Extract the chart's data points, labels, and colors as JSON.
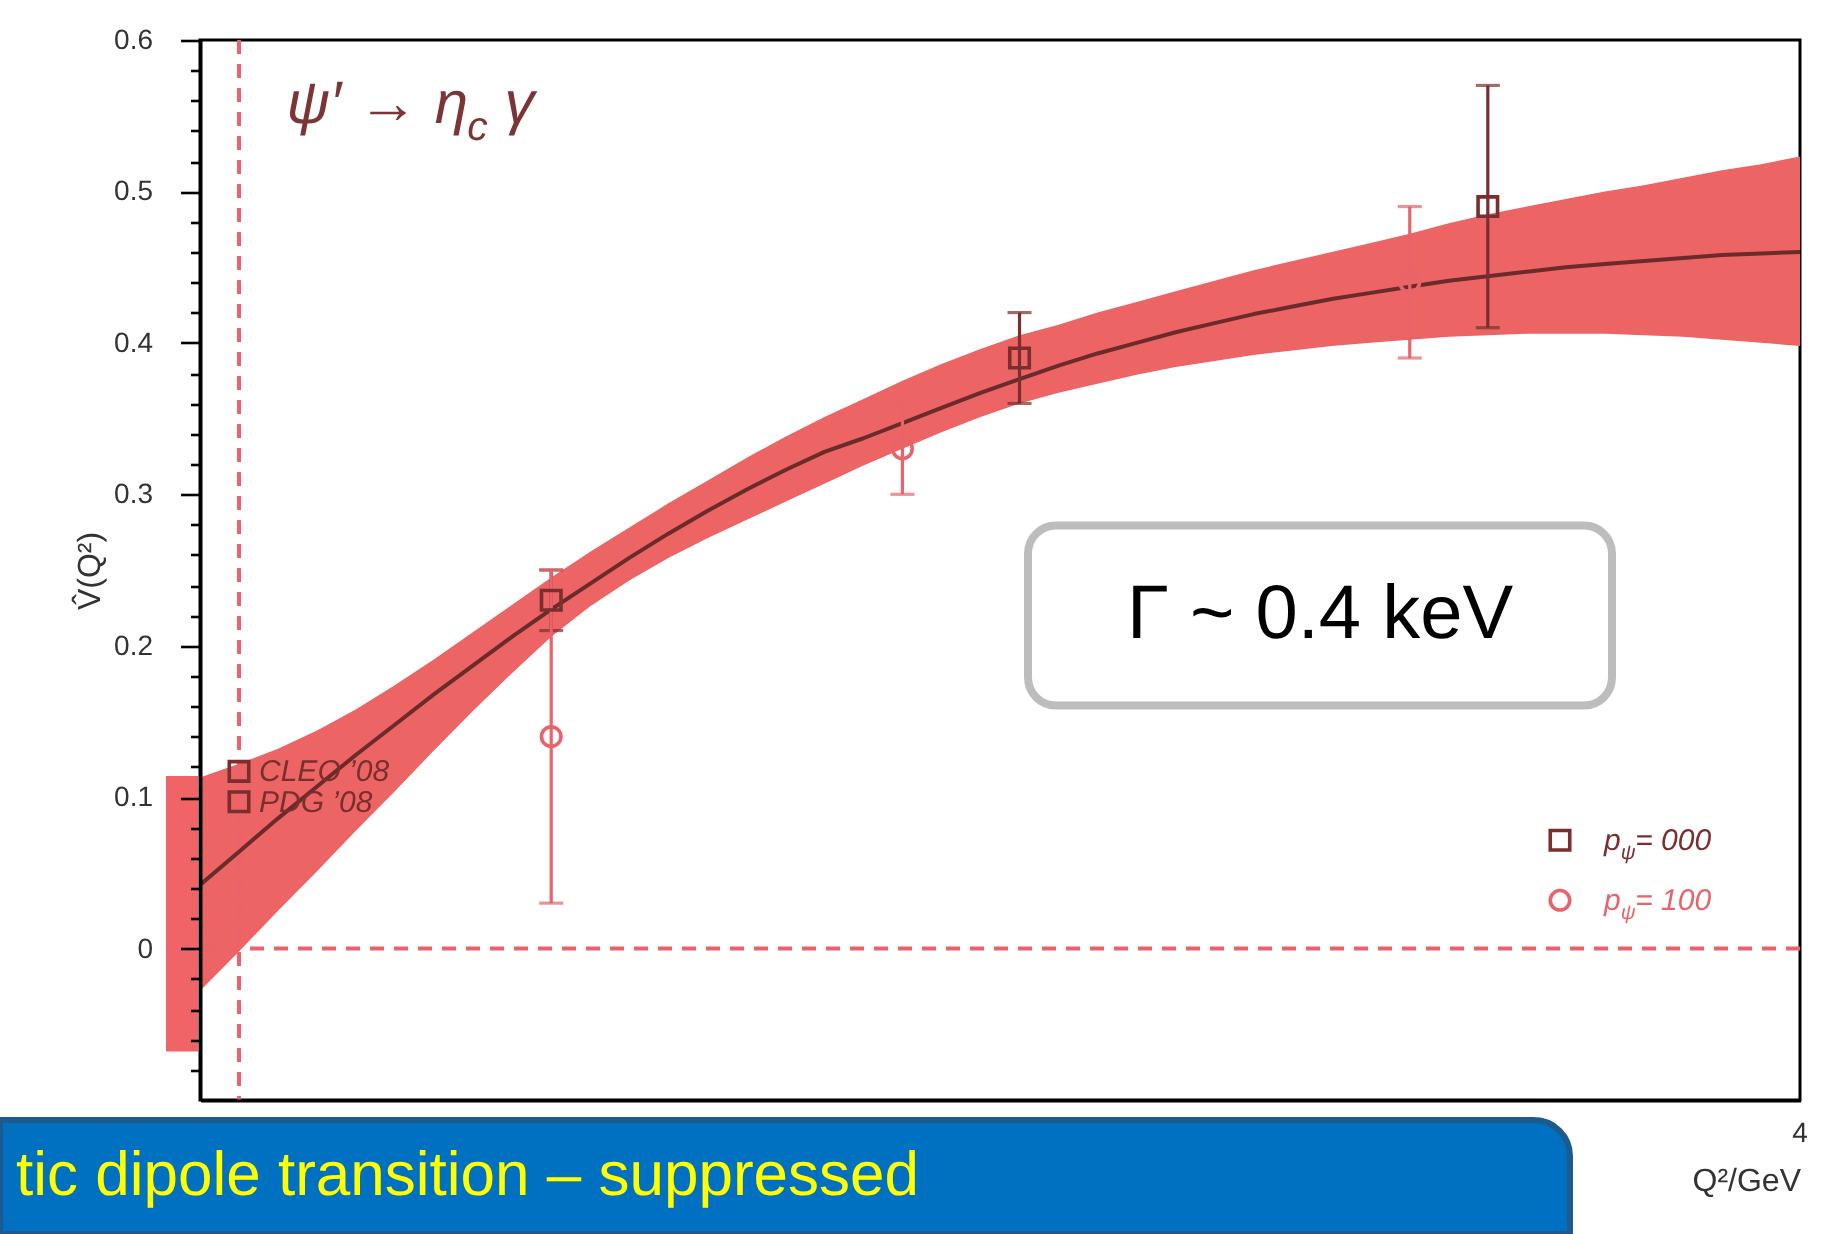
{
  "chart_data": {
    "type": "scatter",
    "title": "ψ′ → η$_{c}$ γ",
    "xlabel": "Q²/GeV",
    "ylabel": "V̂(Q²)",
    "categories": [
      null,
      null,
      null,
      null,
      null,
      null,
      null,
      null,
      null,
      null,
      null,
      null,
      null,
      null,
      null,
      null,
      null,
      null,
      null,
      null,
      null,
      null,
      null,
      null,
      null,
      null,
      null,
      null,
      null,
      null,
      null,
      null,
      null,
      null,
      null,
      null,
      null,
      null,
      null,
      null,
      null,
      null
    ],
    "ylim": [
      -0.1,
      0.6
    ],
    "yticks": [
      {
        "value": -0.08,
        "label": null
      },
      {
        "value": -0.06,
        "label": null
      },
      {
        "value": -0.04,
        "label": null
      },
      {
        "value": -0.02,
        "label": null
      },
      0,
      {
        "value": 0.02,
        "label": null
      },
      {
        "value": 0.04,
        "label": null
      },
      {
        "value": 0.06,
        "label": null
      },
      {
        "value": 0.08,
        "label": null
      },
      0.1,
      {
        "value": 0.12,
        "label": null
      },
      {
        "value": 0.14,
        "label": null
      },
      {
        "value": 0.16,
        "label": null
      },
      {
        "value": 0.18,
        "label": null
      },
      0.2,
      {
        "value": 0.22,
        "label": null
      },
      {
        "value": 0.24,
        "label": null
      },
      {
        "value": 0.26,
        "label": null
      },
      {
        "value": 0.28,
        "label": null
      },
      0.3,
      {
        "value": 0.32,
        "label": null
      },
      {
        "value": 0.34,
        "label": null
      },
      {
        "value": 0.36,
        "label": null
      },
      {
        "value": 0.38,
        "label": null
      },
      0.4,
      {
        "value": 0.42,
        "label": null
      },
      {
        "value": 0.44,
        "label": null
      },
      {
        "value": 0.46,
        "label": null
      },
      {
        "value": 0.48,
        "label": null
      },
      0.5,
      {
        "value": 0.52,
        "label": null
      },
      {
        "value": 0.54,
        "label": null
      },
      {
        "value": 0.56,
        "label": null
      },
      {
        "value": 0.58,
        "label": null
      },
      0.6
    ],
    "grid": false,
    "legend": "bottom right",
    "series": [
      {
        "type": "bar",
        "color": "#f06468",
        "values": [
          0.182,
          null,
          null,
          null,
          null,
          null,
          null,
          null,
          null,
          null,
          null,
          null,
          null,
          null,
          null,
          null,
          null,
          null,
          null,
          null,
          null,
          null,
          null,
          null,
          null,
          null,
          null,
          null,
          null,
          null,
          null,
          null,
          null,
          null,
          null,
          null,
          null,
          null,
          null,
          null,
          null,
          null
        ],
        "base": [
          -0.068,
          null,
          null,
          null,
          null,
          null,
          null,
          null,
          null,
          null,
          null,
          null,
          null,
          null,
          null,
          null,
          null,
          null,
          null,
          null,
          null,
          null,
          null,
          null,
          null,
          null,
          null,
          null,
          null,
          null,
          null,
          null,
          null,
          null,
          null,
          null,
          null,
          null,
          null,
          null,
          null,
          null
        ]
      },
      {
        "type": "line",
        "color": "#6b2b2b",
        "line_style": "solid",
        "values": [
          0.042,
          0.064,
          0.086,
          0.107,
          0.128,
          0.148,
          0.168,
          0.187,
          0.206,
          0.224,
          0.241,
          0.258,
          0.274,
          0.289,
          0.303,
          0.316,
          0.328,
          0.337,
          0.347,
          0.357,
          0.367,
          0.376,
          0.385,
          0.393,
          0.4,
          0.407,
          0.413,
          0.419,
          0.424,
          0.429,
          0.433,
          0.437,
          0.441,
          0.444,
          0.447,
          0.45,
          0.452,
          0.454,
          0.456,
          0.458,
          0.459,
          0.46
        ],
        "lower": [
          -0.028,
          -0.002,
          0.025,
          0.051,
          0.078,
          0.104,
          0.131,
          0.157,
          0.182,
          0.206,
          0.226,
          0.243,
          0.258,
          0.271,
          0.283,
          0.295,
          0.307,
          0.319,
          0.33,
          0.341,
          0.351,
          0.36,
          0.367,
          0.373,
          0.379,
          0.384,
          0.388,
          0.392,
          0.395,
          0.398,
          0.4,
          0.402,
          0.404,
          0.405,
          0.406,
          0.406,
          0.406,
          0.405,
          0.404,
          0.402,
          0.4,
          0.398
        ],
        "upper": [
          0.113,
          0.122,
          0.132,
          0.144,
          0.158,
          0.174,
          0.191,
          0.209,
          0.227,
          0.245,
          0.262,
          0.278,
          0.294,
          0.309,
          0.324,
          0.338,
          0.351,
          0.363,
          0.375,
          0.386,
          0.396,
          0.405,
          0.412,
          0.42,
          0.427,
          0.434,
          0.441,
          0.448,
          0.454,
          0.46,
          0.466,
          0.472,
          0.479,
          0.485,
          0.49,
          0.495,
          0.5,
          0.504,
          0.509,
          0.514,
          0.518,
          0.523
        ]
      },
      {
        "name": "p$_{ψ}$= 000",
        "marker": "square",
        "color": "#7a2e2e",
        "values": [
          null,
          null,
          null,
          null,
          null,
          null,
          null,
          null,
          null,
          0.23,
          null,
          null,
          null,
          null,
          null,
          null,
          null,
          null,
          null,
          null,
          null,
          0.39,
          null,
          null,
          null,
          null,
          null,
          null,
          null,
          null,
          null,
          null,
          null,
          0.49,
          null,
          null,
          null,
          null,
          null,
          null,
          null,
          null
        ],
        "errors": [
          null,
          null,
          null,
          null,
          null,
          null,
          null,
          null,
          null,
          0.02,
          null,
          null,
          null,
          null,
          null,
          null,
          null,
          null,
          null,
          null,
          null,
          0.03,
          null,
          null,
          null,
          null,
          null,
          null,
          null,
          null,
          null,
          null,
          null,
          0.08,
          null,
          null,
          null,
          null,
          null,
          null,
          null,
          null
        ]
      },
      {
        "name": "p$_{ψ}$= 100",
        "marker": "circle",
        "color": "#e8646a",
        "values": [
          null,
          null,
          null,
          null,
          null,
          null,
          null,
          null,
          null,
          0.14,
          null,
          null,
          null,
          null,
          null,
          null,
          null,
          null,
          0.33,
          null,
          null,
          null,
          null,
          null,
          null,
          null,
          null,
          null,
          null,
          null,
          null,
          0.44,
          null,
          null,
          null,
          null,
          null,
          null,
          null,
          null,
          null,
          null
        ],
        "errors": [
          null,
          null,
          null,
          null,
          null,
          null,
          null,
          null,
          null,
          0.11,
          null,
          null,
          null,
          null,
          null,
          null,
          null,
          null,
          0.03,
          null,
          null,
          null,
          null,
          null,
          null,
          null,
          null,
          null,
          null,
          null,
          null,
          0.05,
          null,
          null,
          null,
          null,
          null,
          null,
          null,
          null,
          null,
          null
        ]
      },
      {
        "name": "CLEO ’08",
        "marker": "square",
        "color": "#7a2e2e",
        "values": [
          null,
          0.117,
          null,
          null,
          null,
          null,
          null,
          null,
          null,
          null,
          null,
          null,
          null,
          null,
          null,
          null,
          null,
          null,
          null,
          null,
          null,
          null,
          null,
          null,
          null,
          null,
          null,
          null,
          null,
          null,
          null,
          null,
          null,
          null,
          null,
          null,
          null,
          null,
          null,
          null,
          null,
          null
        ]
      },
      {
        "name": "PDG ’08",
        "marker": "square",
        "color": "#7a2e2e",
        "values": [
          null,
          0.097,
          null,
          null,
          null,
          null,
          null,
          null,
          null,
          null,
          null,
          null,
          null,
          null,
          null,
          null,
          null,
          null,
          null,
          null,
          null,
          null,
          null,
          null,
          null,
          null,
          null,
          null,
          null,
          null,
          null,
          null,
          null,
          null,
          null,
          null,
          null,
          null,
          null,
          null,
          null,
          null
        ]
      }
    ],
    "ref_lines": [
      {
        "axis": "y",
        "value": 0,
        "color": "#e8646a",
        "line_style": "dashed"
      }
    ],
    "annotations": [
      "Γ ~ 0.4 keV",
      "tic dipole transition – suppressed",
      "4"
    ]
  }
}
